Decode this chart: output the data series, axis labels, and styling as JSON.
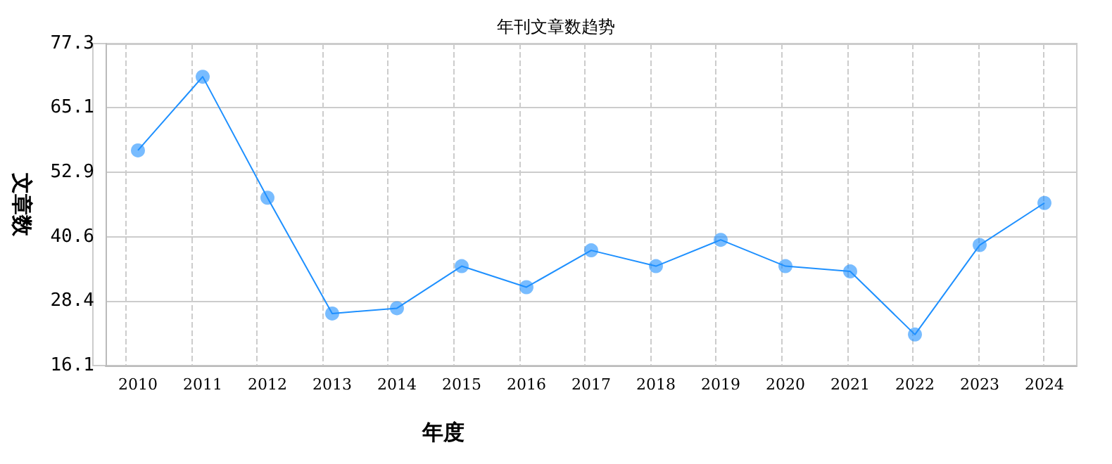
{
  "chart_data": {
    "type": "line",
    "title": "年刊文章数趋势",
    "xlabel": "年度",
    "ylabel": "文章数",
    "categories": [
      "2010",
      "2011",
      "2012",
      "2013",
      "2014",
      "2015",
      "2016",
      "2017",
      "2018",
      "2019",
      "2020",
      "2021",
      "2022",
      "2023",
      "2024"
    ],
    "series": [
      {
        "color": "#1e90ff",
        "values": [
          57,
          71,
          48,
          26,
          27,
          35,
          31,
          38,
          35,
          40,
          35,
          34,
          22,
          39,
          47
        ]
      }
    ],
    "ylim": [
      16.1,
      77.3
    ],
    "yticks": [
      16.1,
      28.4,
      40.6,
      52.9,
      65.1,
      77.3
    ],
    "grid": true,
    "marker": "circle",
    "line_style": "solid"
  }
}
